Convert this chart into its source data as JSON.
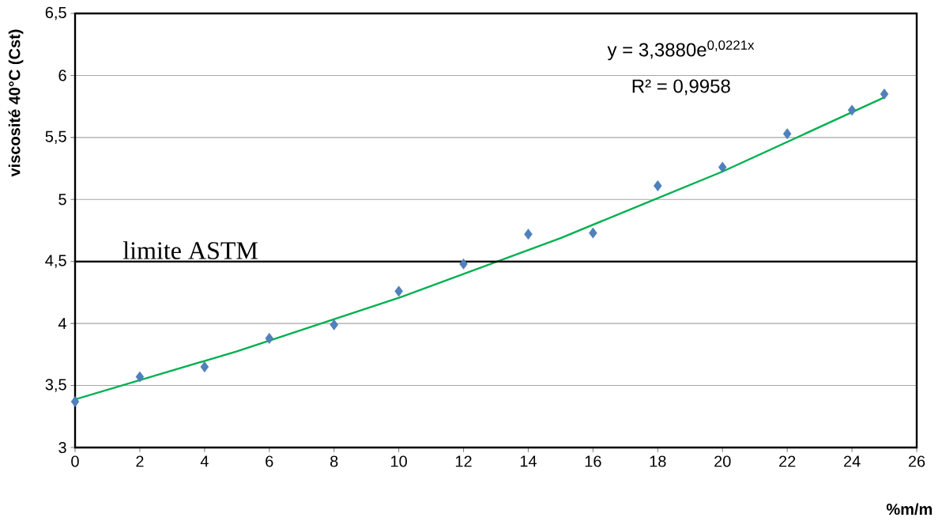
{
  "chart_data": {
    "type": "scatter",
    "xlabel": "%m/m",
    "ylabel": "viscosité 40°C (Cst)",
    "xlim": [
      0,
      26
    ],
    "ylim": [
      3,
      6.5
    ],
    "xticks": [
      0,
      2,
      4,
      6,
      8,
      10,
      12,
      14,
      16,
      18,
      20,
      22,
      24,
      26
    ],
    "yticks": [
      3,
      {
        "value": 3.5,
        "label": "3,5"
      },
      4,
      {
        "value": 4.5,
        "label": "4,5"
      },
      5,
      {
        "value": 5.5,
        "label": "5,5"
      },
      6,
      {
        "value": 6.5,
        "label": "6,5"
      }
    ],
    "grid": "y",
    "series": [
      {
        "marker": "diamond",
        "color": "#4f81bd",
        "x": [
          0,
          2,
          4,
          6,
          8,
          10,
          12,
          14,
          16,
          18,
          20,
          22,
          24,
          25
        ],
        "values": [
          3.37,
          3.57,
          3.65,
          3.88,
          3.99,
          4.26,
          4.48,
          4.72,
          4.73,
          5.11,
          5.26,
          5.53,
          5.72,
          5.85
        ]
      },
      {
        "type": "line",
        "marker": "none",
        "color": "#00b050",
        "x": [
          0,
          5,
          10,
          15,
          20,
          25
        ],
        "values": [
          3.388,
          3.776,
          4.207,
          4.689,
          5.225,
          5.823
        ]
      }
    ],
    "ref_lines": [
      {
        "axis": "y",
        "value": 4.5,
        "label": "limite ASTM",
        "color": "#000000"
      }
    ],
    "annotations": [
      "y = 3,3880e$^{0,0221x}$",
      "R² = 0,9958"
    ]
  }
}
